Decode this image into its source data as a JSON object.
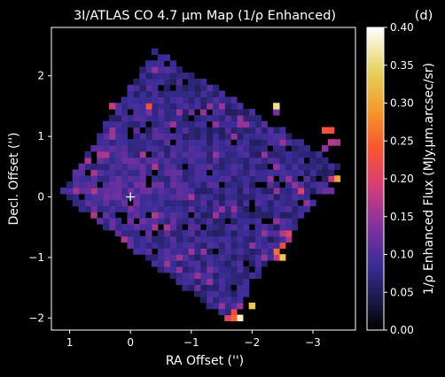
{
  "chart_data": {
    "type": "heatmap",
    "title": "3I/ATLAS CO 4.7 μm Map (1/ρ Enhanced)",
    "panel_label": "(d)",
    "xlabel": "RA Offset ('')",
    "ylabel": "Decl. Offset ('')",
    "colorbar_label": "1/ρ Enhanced Flux (MJy.μm.arcsec/sr)",
    "xlim": [
      1.3,
      -3.7
    ],
    "ylim": [
      -2.2,
      2.8
    ],
    "x_ticks": [
      1,
      0,
      -1,
      -2,
      -3
    ],
    "x_tick_labels": [
      "1",
      "0",
      "−1",
      "−2",
      "−3"
    ],
    "y_ticks": [
      2,
      1,
      0,
      -1,
      -2
    ],
    "y_tick_labels": [
      "2",
      "1",
      "0",
      "−1",
      "−2"
    ],
    "clim": [
      0.0,
      0.4
    ],
    "colorbar_ticks": [
      0.0,
      0.05,
      0.1,
      0.15,
      0.2,
      0.25,
      0.3,
      0.35,
      0.4
    ],
    "colorbar_tick_labels": [
      "0.00",
      "0.05",
      "0.10",
      "0.15",
      "0.20",
      "0.25",
      "0.30",
      "0.35",
      "0.40"
    ],
    "colormap": "CMRmap",
    "pixel_scale": 0.1,
    "nucleus_marker": {
      "x": 0,
      "y": 0,
      "symbol": "+"
    },
    "grid": false,
    "background": "#000000",
    "footprint": {
      "shape": "rotated-square",
      "corners": [
        [
          -0.4,
          2.45
        ],
        [
          1.15,
          0.05
        ],
        [
          -1.6,
          -2.05
        ],
        [
          -3.45,
          0.5
        ]
      ]
    },
    "background_flux": 0.08,
    "hot_pixels": [
      {
        "x": -0.3,
        "y": 1.5,
        "value": 0.23
      },
      {
        "x": -0.3,
        "y": 1.4,
        "value": 0.13
      },
      {
        "x": -1.05,
        "y": 1.35,
        "value": 0.12
      },
      {
        "x": -2.45,
        "y": 1.5,
        "value": 0.36
      },
      {
        "x": -2.45,
        "y": 1.45,
        "value": 0.13
      },
      {
        "x": -3.2,
        "y": 1.05,
        "value": 0.24
      },
      {
        "x": -3.3,
        "y": 1.05,
        "value": 0.23
      },
      {
        "x": -3.3,
        "y": 0.95,
        "value": 0.19
      },
      {
        "x": -3.4,
        "y": 0.95,
        "value": 0.16
      },
      {
        "x": -3.35,
        "y": 0.85,
        "value": 0.17
      },
      {
        "x": -3.25,
        "y": 0.75,
        "value": 0.14
      },
      {
        "x": -3.45,
        "y": 0.3,
        "value": 0.3
      },
      {
        "x": -3.35,
        "y": 0.25,
        "value": 0.18
      },
      {
        "x": -3.3,
        "y": 0.15,
        "value": 0.12
      },
      {
        "x": -2.8,
        "y": 0.1,
        "value": 0.2
      },
      {
        "x": -3.2,
        "y": 0.05,
        "value": 0.12
      },
      {
        "x": -2.5,
        "y": -0.65,
        "value": 0.17
      },
      {
        "x": -2.6,
        "y": -0.6,
        "value": 0.2
      },
      {
        "x": -2.65,
        "y": -0.7,
        "value": 0.16
      },
      {
        "x": -2.55,
        "y": -0.85,
        "value": 0.22
      },
      {
        "x": -2.45,
        "y": -0.95,
        "value": 0.26
      },
      {
        "x": -2.5,
        "y": -1.0,
        "value": 0.33
      },
      {
        "x": -2.4,
        "y": -1.05,
        "value": 0.18
      },
      {
        "x": -1.35,
        "y": -1.2,
        "value": 0.13
      },
      {
        "x": -1.15,
        "y": -1.5,
        "value": 0.12
      },
      {
        "x": -1.85,
        "y": -1.8,
        "value": 0.15
      },
      {
        "x": -2.05,
        "y": -1.8,
        "value": 0.33
      },
      {
        "x": -1.7,
        "y": -1.95,
        "value": 0.22
      },
      {
        "x": -1.75,
        "y": -2.05,
        "value": 0.25
      },
      {
        "x": -1.8,
        "y": -2.05,
        "value": 0.38
      },
      {
        "x": -1.65,
        "y": -2.0,
        "value": 0.2
      },
      {
        "x": 0.3,
        "y": 1.5,
        "value": 0.18
      }
    ]
  }
}
